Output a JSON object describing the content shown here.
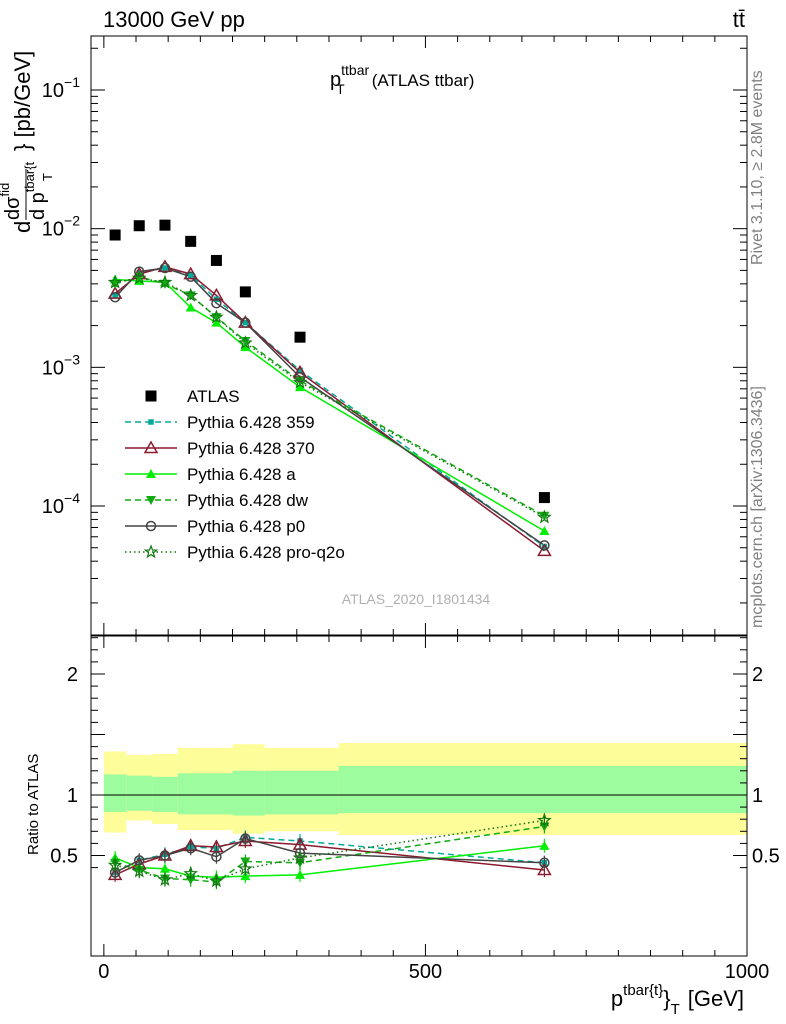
{
  "header": {
    "left": "13000 GeV pp",
    "right": "tt̄"
  },
  "side_labels": {
    "right_top": "Rivet 3.1.10, ≥ 2.8M events",
    "right_bottom": "mcplots.cern.ch [arXiv:1306.3436]"
  },
  "watermark": "ATLAS_2020_I1801434",
  "plot_title": {
    "main": "p",
    "sup": "ttbar",
    "sub": "T",
    "rest": "(ATLAS ttbar)"
  },
  "axes": {
    "xlabel": {
      "main": "p",
      "sup": "tbar{t}",
      "sub": "T",
      "brace": "}",
      "unit": "[GeV]"
    },
    "ylabel_upper": {
      "d": "d",
      "sigma": "dσ",
      "fid": "fid",
      "dp": "d p",
      "sub": "tbar{t",
      "T": "T",
      "rest": "} [pb/GeV]"
    },
    "ylabel_lower": "Ratio to ATLAS"
  },
  "chart_data": [
    {
      "type": "scatter",
      "panel": "main",
      "yscale": "log",
      "xlim": [
        -20,
        1000
      ],
      "ylim": [
        1e-05,
        0.26
      ],
      "x_ticks": [
        0,
        500,
        1000
      ],
      "y_ticks": [
        {
          "value": 0.1,
          "base": "10",
          "exp": "−1"
        },
        {
          "value": 0.01,
          "base": "10",
          "exp": "−2"
        },
        {
          "value": 0.001,
          "base": "10",
          "exp": "−3"
        },
        {
          "value": 0.0001,
          "base": "10",
          "exp": "−4"
        }
      ],
      "legend_position": "lower-left",
      "x": [
        17.5,
        55,
        95,
        135,
        175,
        220,
        305,
        685
      ],
      "series": [
        {
          "name": "ATLAS",
          "color": "#000000",
          "marker": "square",
          "line": "none",
          "values": [
            0.009,
            0.0105,
            0.0106,
            0.0081,
            0.0059,
            0.0035,
            0.00165,
            0.000115
          ]
        },
        {
          "name": "Pythia 6.428 359",
          "color": "#00aa99",
          "marker": "small-square",
          "line": "dashed",
          "values": [
            0.0033,
            0.0048,
            0.0052,
            0.0046,
            0.0031,
            0.0021,
            0.00095,
            5.1e-05
          ]
        },
        {
          "name": "Pythia 6.428 370",
          "color": "#8b1a2e",
          "marker": "open-triangle",
          "line": "solid",
          "values": [
            0.0034,
            0.0047,
            0.0053,
            0.0047,
            0.0033,
            0.0021,
            0.00092,
            4.75e-05
          ]
        },
        {
          "name": "Pythia 6.428 a",
          "color": "#00ee00",
          "marker": "triangle",
          "line": "solid",
          "values": [
            0.0043,
            0.0042,
            0.0041,
            0.0027,
            0.0021,
            0.0014,
            0.00072,
            6.6e-05
          ]
        },
        {
          "name": "Pythia 6.428 dw",
          "color": "#11aa11",
          "marker": "triangle-down",
          "line": "dashed",
          "values": [
            0.004,
            0.0045,
            0.004,
            0.0033,
            0.0023,
            0.00155,
            0.0008,
            8.5e-05
          ]
        },
        {
          "name": "Pythia 6.428 p0",
          "color": "#444444",
          "marker": "open-circle",
          "line": "solid",
          "values": [
            0.0032,
            0.0049,
            0.0052,
            0.0045,
            0.0029,
            0.0021,
            0.00085,
            5.2e-05
          ]
        },
        {
          "name": "Pythia 6.428 pro-q2o",
          "color": "#117711",
          "marker": "star",
          "line": "dotted",
          "values": [
            0.0041,
            0.0044,
            0.0041,
            0.0033,
            0.0023,
            0.0015,
            0.00078,
            8.3e-05
          ]
        }
      ]
    },
    {
      "type": "scatter",
      "panel": "ratio",
      "yscale": "linear",
      "xlim": [
        -20,
        1000
      ],
      "ylim": [
        0.34,
        2.35
      ],
      "y_ticks": [
        "0.5",
        "1",
        "2"
      ],
      "bands": {
        "x_edges": [
          0,
          35,
          75,
          115,
          155,
          200,
          250,
          365,
          1000
        ],
        "inner_lo": [
          0.86,
          0.87,
          0.86,
          0.84,
          0.84,
          0.83,
          0.84,
          0.85
        ],
        "inner_hi": [
          1.17,
          1.16,
          1.15,
          1.18,
          1.18,
          1.2,
          1.2,
          1.24
        ],
        "outer_lo": [
          0.69,
          0.79,
          0.76,
          0.71,
          0.71,
          0.68,
          0.7,
          0.67
        ],
        "outer_hi": [
          1.36,
          1.33,
          1.34,
          1.39,
          1.39,
          1.42,
          1.39,
          1.43
        ],
        "inner_color": "#9dfc9d",
        "outer_color": "#fdfd99"
      },
      "x": [
        17.5,
        55,
        95,
        135,
        175,
        220,
        305,
        685
      ],
      "series": [
        {
          "name": "Pythia 6.428 359",
          "values": [
            0.36,
            0.46,
            0.51,
            0.57,
            0.56,
            0.65,
            0.62,
            0.44
          ]
        },
        {
          "name": "Pythia 6.428 370",
          "values": [
            0.34,
            0.43,
            0.5,
            0.58,
            0.57,
            0.62,
            0.59,
            0.38
          ]
        },
        {
          "name": "Pythia 6.428 a",
          "values": [
            0.48,
            0.4,
            0.39,
            0.33,
            0.32,
            0.33,
            0.34,
            0.58
          ]
        },
        {
          "name": "Pythia 6.428 dw",
          "values": [
            0.44,
            0.38,
            0.31,
            0.3,
            0.28,
            0.45,
            0.44,
            0.74
          ]
        },
        {
          "name": "Pythia 6.428 p0",
          "values": [
            0.36,
            0.46,
            0.5,
            0.56,
            0.49,
            0.64,
            0.52,
            0.44
          ]
        },
        {
          "name": "Pythia 6.428 pro-q2o",
          "values": [
            0.42,
            0.37,
            0.3,
            0.35,
            0.29,
            0.39,
            0.48,
            0.79
          ]
        }
      ]
    }
  ]
}
